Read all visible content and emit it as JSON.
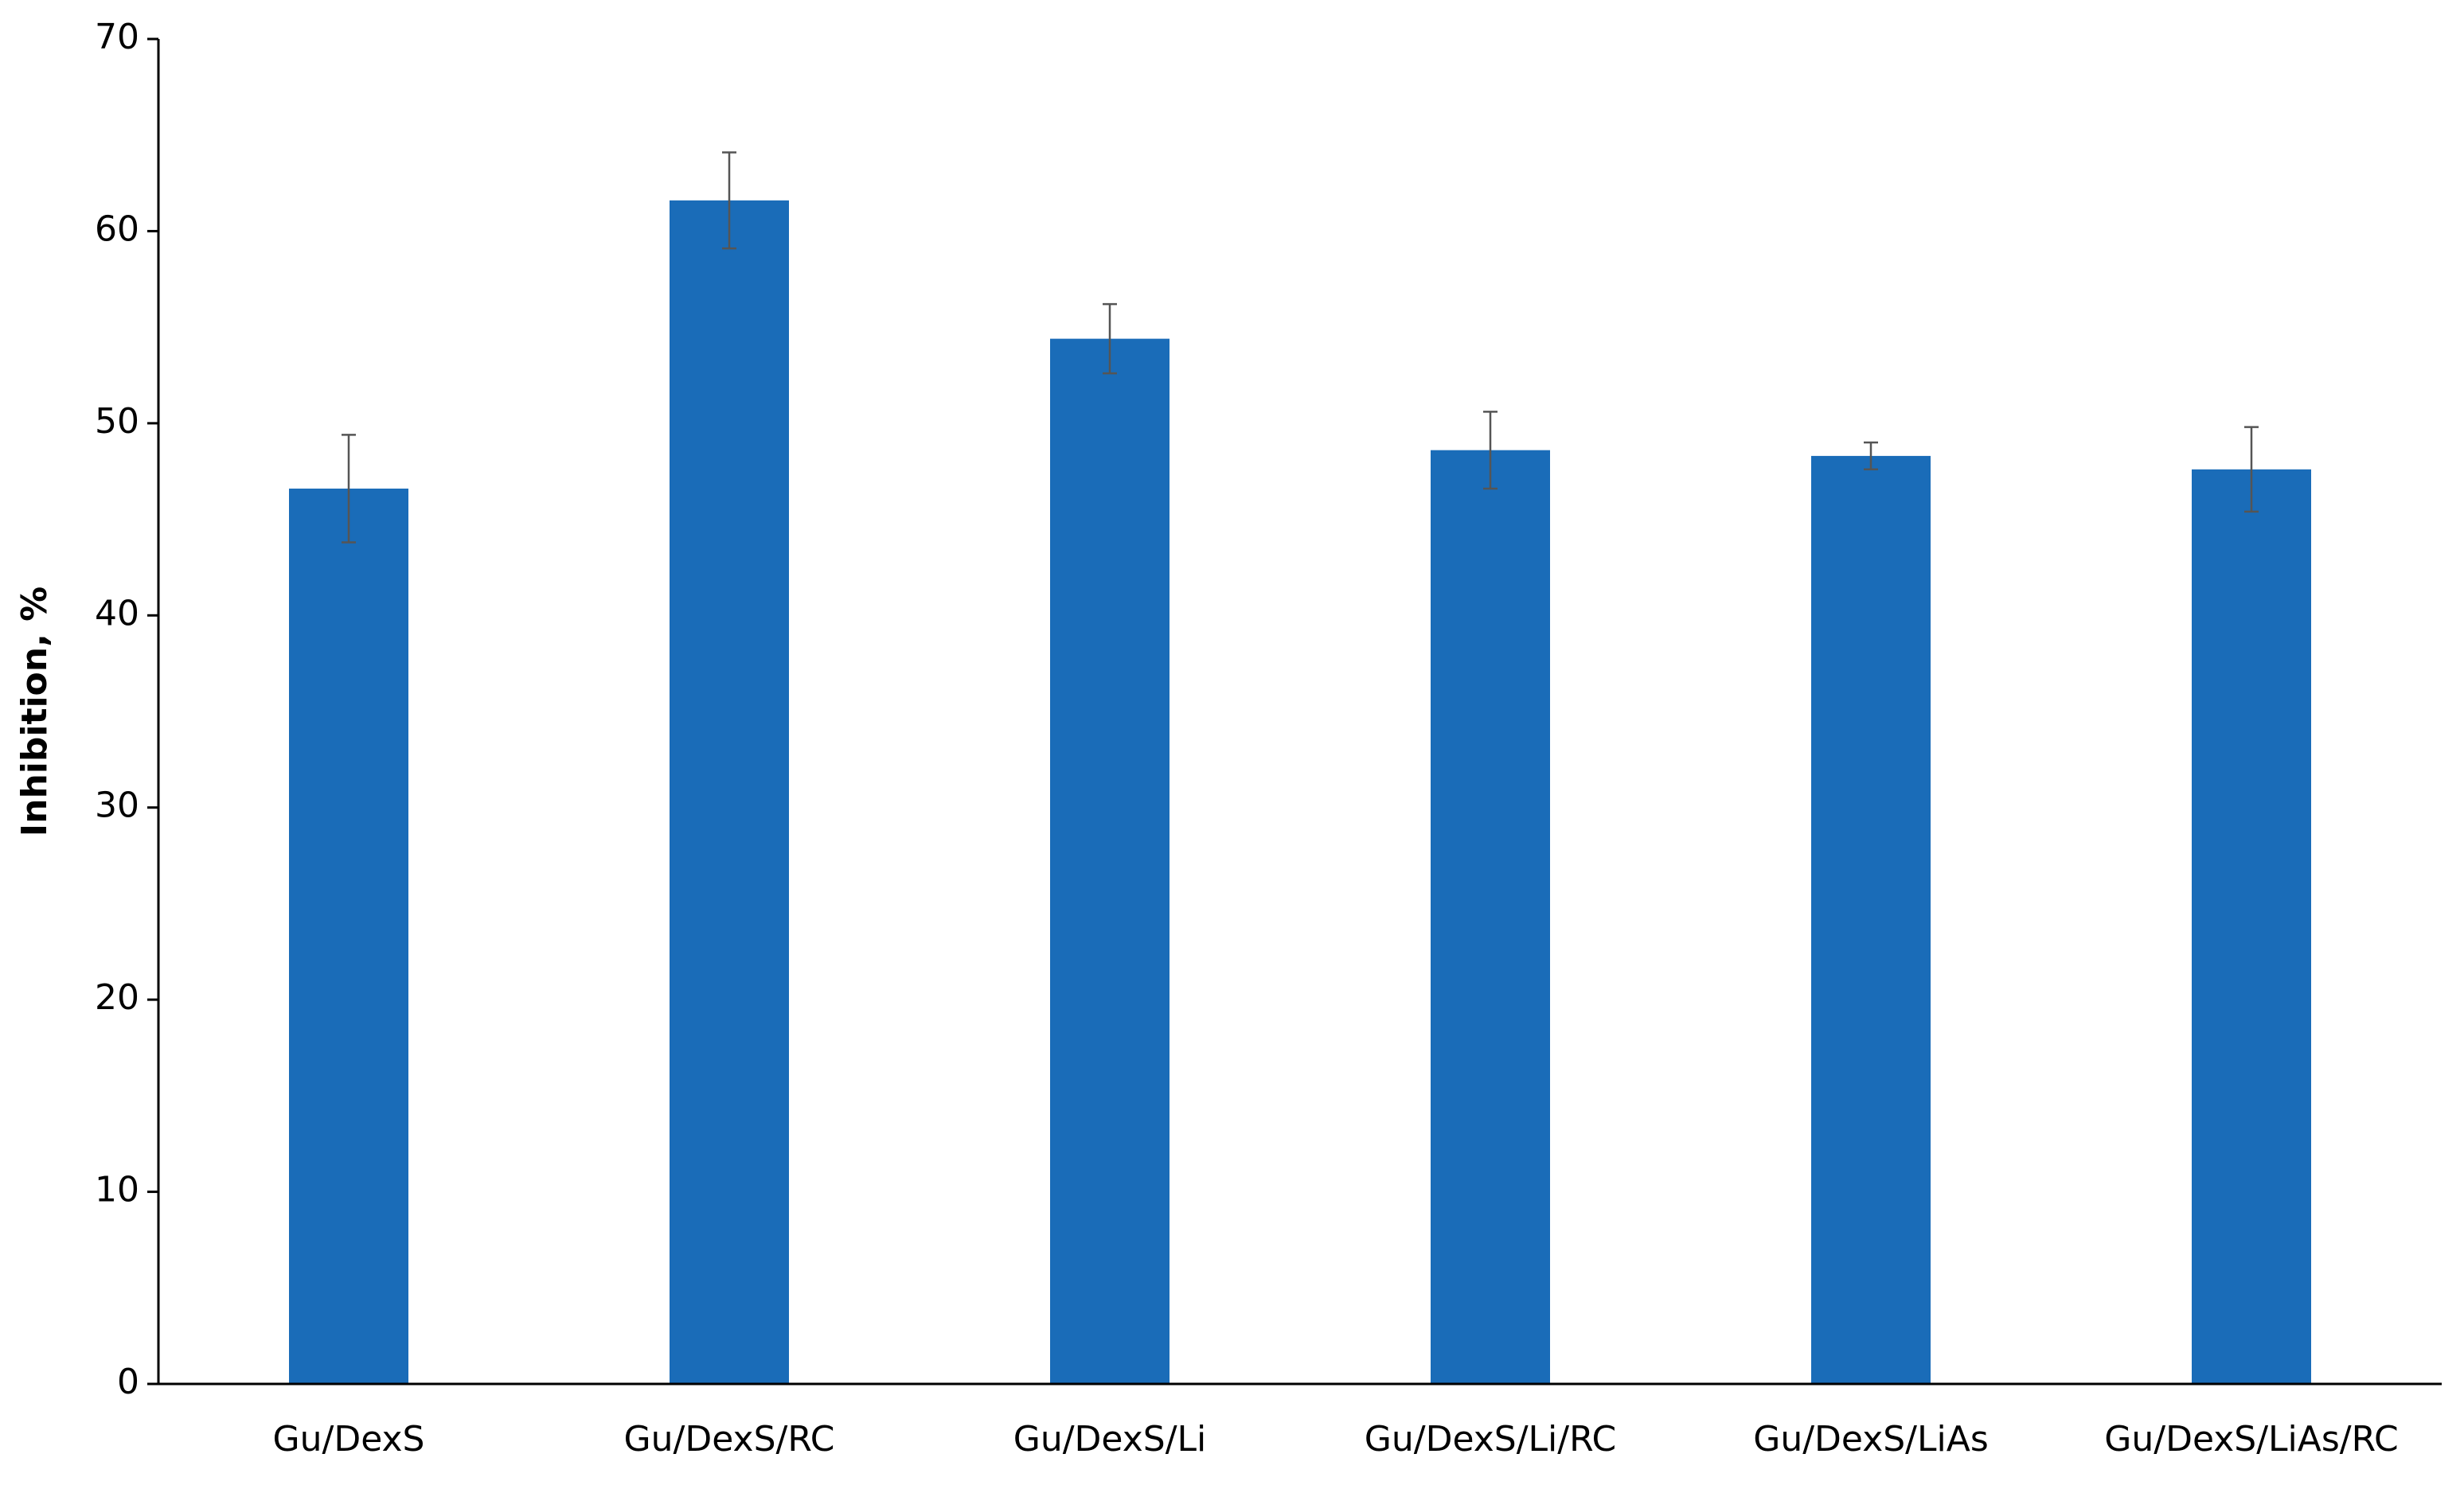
{
  "chart_data": {
    "type": "bar",
    "ylabel": "Inhibition, %",
    "categories": [
      "Gu/DexS",
      "Gu/DexS/RC",
      "Gu/DexS/Li",
      "Gu/DexS/Li/RC",
      "Gu/DexS/LiAs",
      "Gu/DexS/LiAs/RC"
    ],
    "values": [
      46.6,
      61.6,
      54.4,
      48.6,
      48.3,
      47.6
    ],
    "errors": [
      2.8,
      2.5,
      1.8,
      2.0,
      0.7,
      2.2
    ],
    "color": "#1a6cb8",
    "ylim": [
      0,
      70
    ],
    "yticks": [
      0,
      10,
      20,
      30,
      40,
      50,
      60,
      70
    ],
    "grid": false
  }
}
